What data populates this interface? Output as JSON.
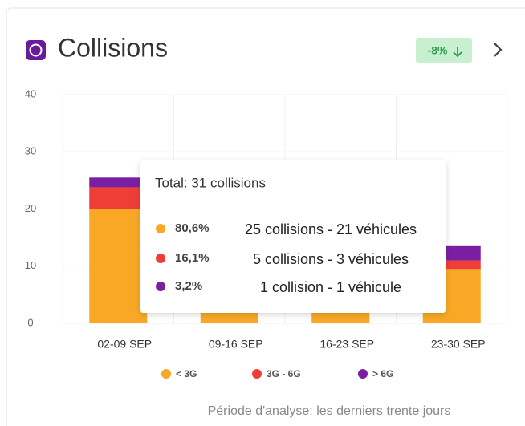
{
  "chart_data": {
    "type": "bar",
    "stacked": true,
    "title": "Collisions",
    "badge": "-8%",
    "categories": [
      "02-09 SEP",
      "09-16 SEP",
      "16-23 SEP",
      "23-30 SEP"
    ],
    "series": [
      {
        "name": "< 3G",
        "color": "#f9a825",
        "values": [
          20,
          12,
          10,
          9.5
        ]
      },
      {
        "name": "3G - 6G",
        "color": "#ef3e36",
        "values": [
          3.8,
          2,
          2,
          1.5
        ]
      },
      {
        "name": "> 6G",
        "color": "#7b1fa2",
        "values": [
          1.7,
          1,
          1,
          2.5
        ]
      }
    ],
    "ylim": [
      0,
      40
    ],
    "yticks": [
      0,
      10,
      20,
      30,
      40
    ],
    "grid": true,
    "tooltip": {
      "title": "Total: 31 collisions",
      "rows": [
        {
          "percent": "80,6%",
          "text": "25 collisions - 21 véhicules"
        },
        {
          "percent": "16,1%",
          "text": "5 collisions - 3 véhicules"
        },
        {
          "percent": "3,2%",
          "text": "1 collision - 1 véhicule"
        }
      ]
    },
    "footnote": "Période d'analyse: les derniers trente jours"
  }
}
